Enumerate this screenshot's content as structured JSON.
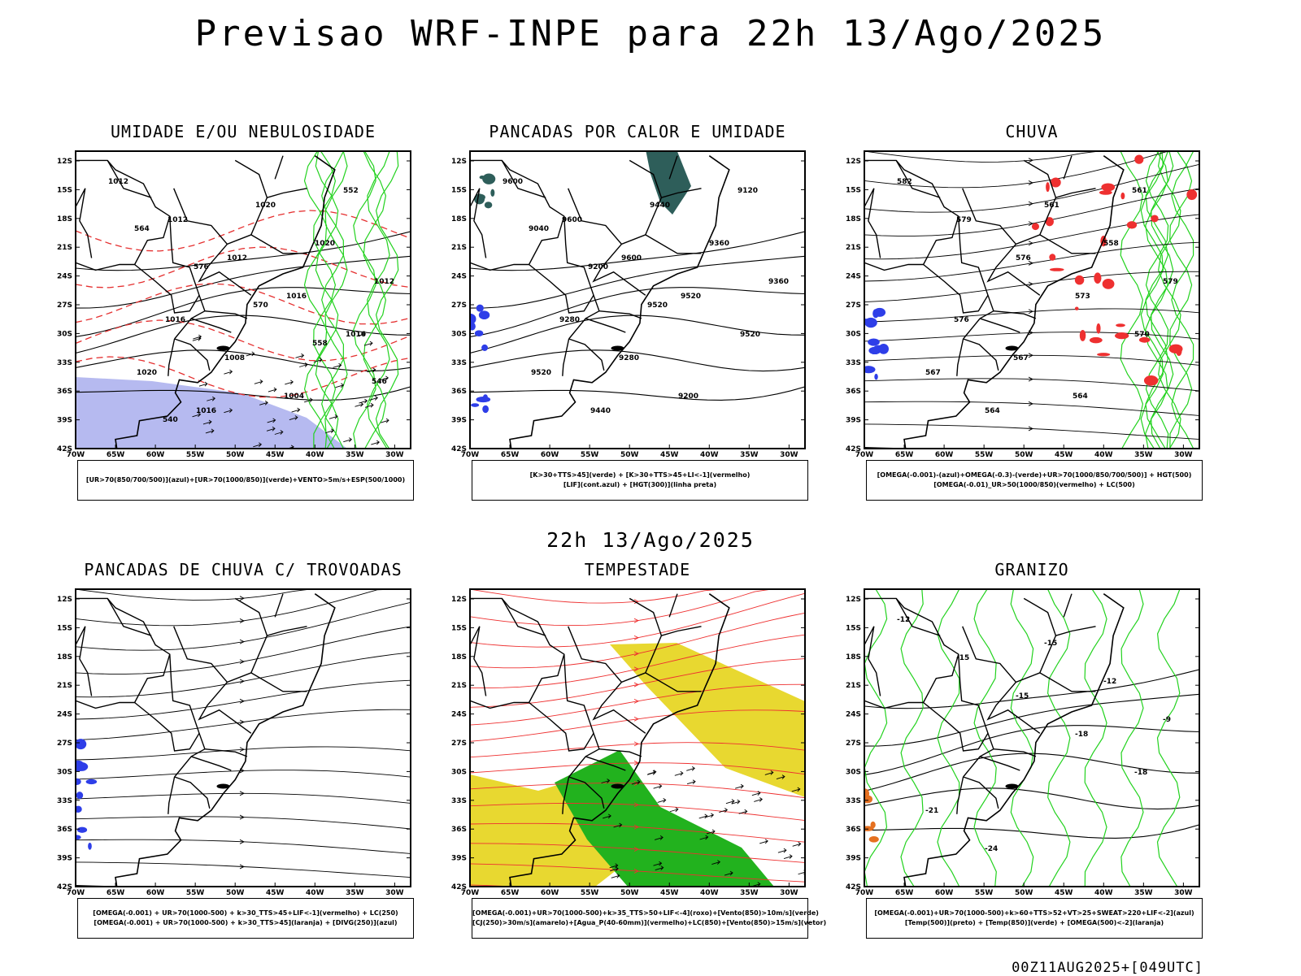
{
  "title": "Previsao WRF-INPE  para 22h 13/Ago/2025",
  "mid_time": "22h 13/Ago/2025",
  "footer": "00Z11AUG2025+[049UTC]",
  "axes": {
    "lat_labels": [
      "12S",
      "15S",
      "18S",
      "21S",
      "24S",
      "27S",
      "30S",
      "33S",
      "36S",
      "39S",
      "42S"
    ],
    "lon_labels": [
      "70W",
      "65W",
      "60W",
      "55W",
      "50W",
      "45W",
      "40W",
      "35W",
      "30W"
    ]
  },
  "panels": [
    {
      "title": "UMIDADE E/OU NEBULOSIDADE",
      "legend": [
        "[UR>70(850/700/500)](azul)+[UR>70(1000/850)](verde)+VENTO>5m/s+ESP(500/1000)"
      ],
      "contour_labels": [
        "1012",
        "1012",
        "1012",
        "1016",
        "1016",
        "1020",
        "1016",
        "1020",
        "1020",
        "1012",
        "1016",
        "1008",
        "1004",
        "552",
        "564",
        "576",
        "570",
        "558",
        "546",
        "540"
      ],
      "layers": [
        "cont-black",
        "dash-red",
        "green",
        "blue",
        "arrows"
      ]
    },
    {
      "title": "PANCADAS POR CALOR E UMIDADE",
      "legend": [
        "[K>30+TTS>45](verde) + [K>30+TTS>45+LI<-1](vermelho)",
        "[LIF](cont.azul) + [HGT(300)](linha preta)"
      ],
      "contour_labels": [
        "9600",
        "9600",
        "9600",
        "9520",
        "9520",
        "9520",
        "9440",
        "9440",
        "9360",
        "9360",
        "9280",
        "9280",
        "9200",
        "9120",
        "9040",
        "9200",
        "9520"
      ],
      "layers": [
        "cont-black",
        "teal",
        "blue"
      ]
    },
    {
      "title": "CHUVA",
      "legend": [
        "[OMEGA(-0.001)-(azul)+OMEGA(-0.3)-(verde)+UR>70(1000/850/700/500)] + HGT(500)",
        "[OMEGA(-0.01)_UR>50(1000/850)(vermelho) + LC(500)"
      ],
      "contour_labels": [
        "582",
        "579",
        "576",
        "573",
        "570",
        "567",
        "564",
        "561",
        "558",
        "579",
        "576",
        "567",
        "564",
        "561"
      ],
      "layers": [
        "streams",
        "red",
        "blue",
        "green"
      ]
    },
    {
      "title": "PANCADAS DE CHUVA C/ TROVOADAS",
      "legend": [
        "[OMEGA(-0.001) + UR>70(1000-500) + k>30_TTS>45+LIF<-1](vermelho) + LC(250)",
        "[OMEGA(-0.001) + UR>70(1000-500) + k>30_TTS>45](laranja) + [DIVG(250)](azul)"
      ],
      "contour_labels": [],
      "layers": [
        "streams",
        "blue"
      ]
    },
    {
      "title": "TEMPESTADE",
      "legend": [
        "[OMEGA(-0.001)+UR>70(1000-500)+k>35_TTS>50+LIF<-4](roxo)+[Vento(850)>10m/s](verde)",
        "[CJ(250)>30m/s](amarelo)+[Agua_P(40-60mm)](vermelho)+LC(850)+[Vento(850)>15m/s](vetor)"
      ],
      "contour_labels": [],
      "layers": [
        "yellow",
        "green",
        "red-streams",
        "arrows"
      ]
    },
    {
      "title": "GRANIZO",
      "legend": [
        "[OMEGA(-0.001)+UR>70(1000-500)+k>60+TTS>52+VT>25+SWEAT>220+LIF<-2](azul)",
        "[Temp(500)](preto) + [Temp(850)](verde) + [OMEGA(500)<-2](laranja)"
      ],
      "contour_labels": [
        "-12",
        "-15",
        "-15",
        "-18",
        "-18",
        "-21",
        "-24",
        "-15",
        "-12",
        "-9"
      ],
      "layers": [
        "green",
        "cont-black",
        "orange"
      ]
    }
  ]
}
